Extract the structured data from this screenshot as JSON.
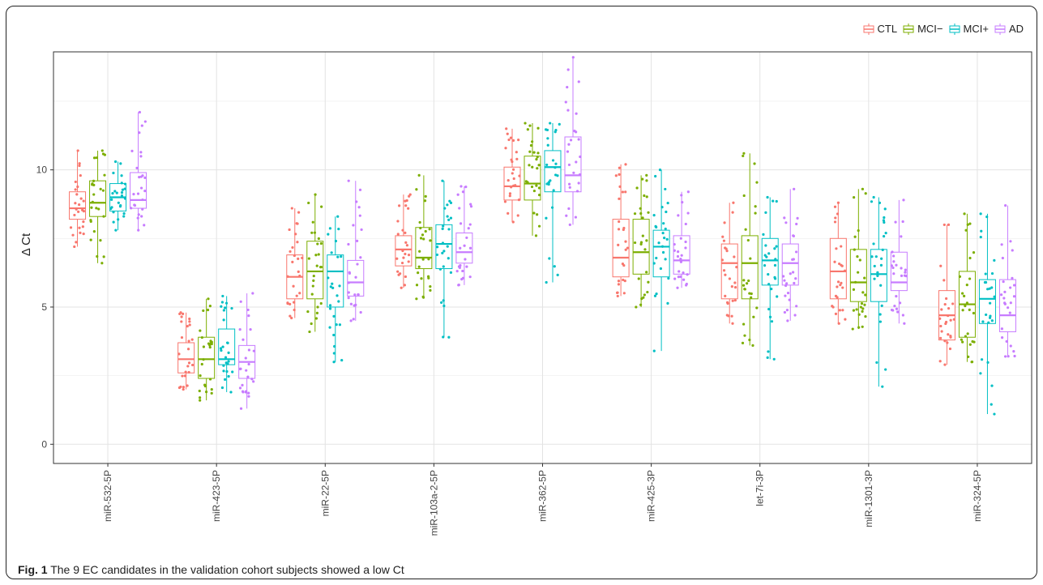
{
  "caption": {
    "label": "Fig. 1",
    "text": "The 9 EC candidates in the validation cohort subjects showed a low Ct"
  },
  "chart_data": {
    "type": "box",
    "ylabel": "Δ Ct",
    "xlabel": "",
    "ylim": [
      -0.7,
      14.3
    ],
    "yticks": [
      0,
      5,
      10
    ],
    "grid": true,
    "legend_position": "top-right",
    "groups": [
      {
        "name": "CTL",
        "color": "#F8766D"
      },
      {
        "name": "MCI−",
        "color": "#7CAE00"
      },
      {
        "name": "MCI+",
        "color": "#00BFC4"
      },
      {
        "name": "AD",
        "color": "#C77CFF"
      }
    ],
    "categories": [
      "miR-532-5P",
      "miR-423-5P",
      "miR-22-5P",
      "miR-103a-2-5P",
      "miR-362-5P",
      "miR-425-3P",
      "let-7i-3P",
      "miR-1301-3P",
      "miR-324-5P"
    ],
    "boxes": [
      [
        [
          7.2,
          8.2,
          8.6,
          9.2,
          10.7
        ],
        [
          6.6,
          8.3,
          8.8,
          9.6,
          10.7
        ],
        [
          7.8,
          8.5,
          9.0,
          9.5,
          10.3
        ],
        [
          7.8,
          8.6,
          8.9,
          9.9,
          12.1
        ]
      ],
      [
        [
          2.0,
          2.6,
          3.1,
          3.7,
          4.8
        ],
        [
          1.6,
          2.4,
          3.1,
          3.9,
          5.3
        ],
        [
          1.9,
          2.9,
          3.1,
          4.2,
          5.4
        ],
        [
          1.3,
          2.4,
          3.0,
          3.6,
          5.5
        ]
      ],
      [
        [
          4.6,
          5.3,
          6.1,
          6.9,
          8.6
        ],
        [
          4.1,
          5.3,
          6.3,
          7.4,
          9.1
        ],
        [
          3.0,
          5.0,
          6.3,
          6.9,
          8.3
        ],
        [
          4.5,
          5.4,
          5.9,
          6.7,
          9.6
        ]
      ],
      [
        [
          5.7,
          6.5,
          7.1,
          7.6,
          9.1
        ],
        [
          5.3,
          6.4,
          6.8,
          7.9,
          9.8
        ],
        [
          3.9,
          6.4,
          7.3,
          8.0,
          9.6
        ],
        [
          5.8,
          6.6,
          7.0,
          7.7,
          9.4
        ]
      ],
      [
        [
          8.1,
          8.9,
          9.4,
          10.1,
          11.5
        ],
        [
          7.6,
          8.9,
          9.5,
          10.5,
          11.7
        ],
        [
          5.9,
          9.2,
          10.1,
          10.7,
          11.7
        ],
        [
          8.0,
          9.2,
          9.8,
          11.2,
          14.1
        ]
      ],
      [
        [
          5.4,
          6.1,
          6.8,
          8.2,
          10.2
        ],
        [
          5.0,
          6.2,
          7.0,
          8.2,
          9.8
        ],
        [
          3.4,
          6.1,
          7.2,
          7.8,
          10.0
        ],
        [
          5.7,
          6.2,
          6.7,
          7.6,
          9.2
        ]
      ],
      [
        [
          4.4,
          5.3,
          6.6,
          7.3,
          8.8
        ],
        [
          3.6,
          5.3,
          6.6,
          7.6,
          10.6
        ],
        [
          3.1,
          5.8,
          6.7,
          7.5,
          9.0
        ],
        [
          4.5,
          5.8,
          6.6,
          7.3,
          9.3
        ]
      ],
      [
        [
          4.4,
          5.3,
          6.3,
          7.5,
          8.8
        ],
        [
          4.2,
          5.2,
          5.9,
          7.1,
          9.3
        ],
        [
          2.1,
          5.2,
          6.2,
          7.1,
          9.0
        ],
        [
          4.4,
          5.6,
          5.9,
          7.0,
          8.9
        ]
      ],
      [
        [
          2.9,
          3.8,
          4.7,
          5.6,
          8.0
        ],
        [
          3.0,
          3.9,
          5.1,
          6.3,
          8.4
        ],
        [
          1.1,
          4.4,
          5.3,
          6.0,
          8.4
        ],
        [
          3.2,
          4.1,
          4.7,
          6.0,
          8.7
        ]
      ]
    ]
  }
}
